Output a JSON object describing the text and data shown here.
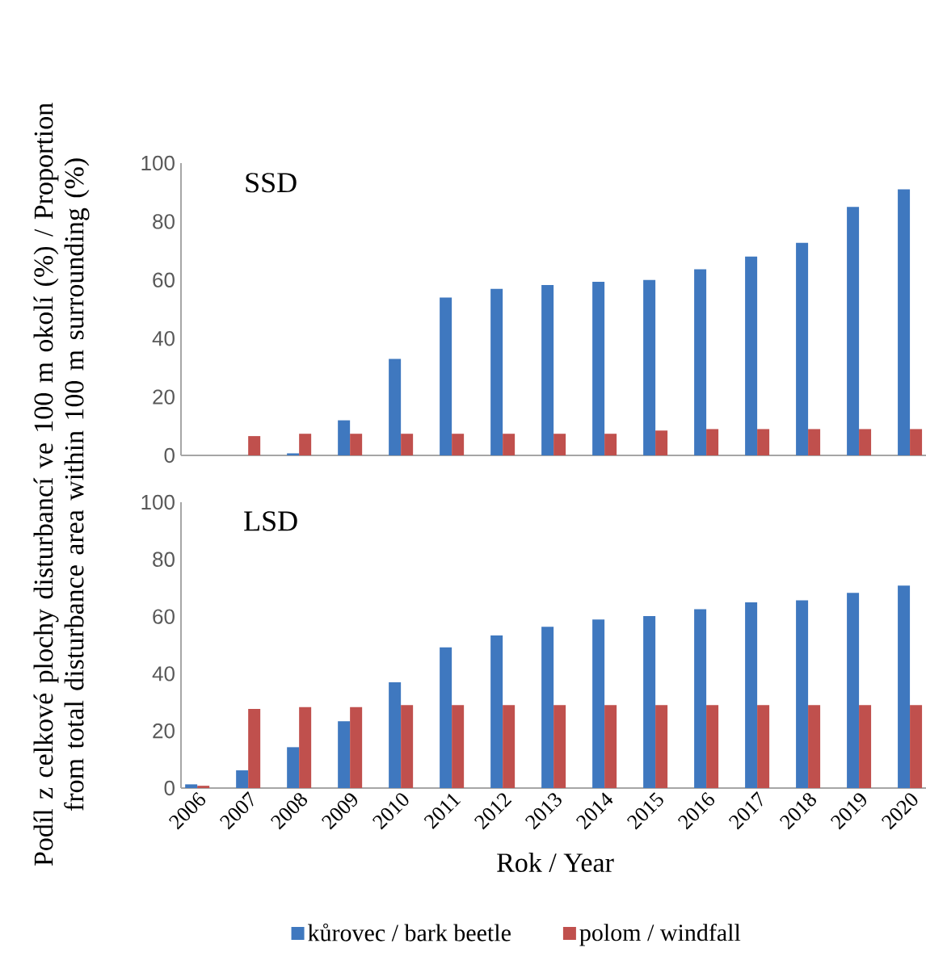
{
  "chart_data": [
    {
      "type": "bar",
      "title": "SSD",
      "ylabel": "Podíl z celkové plochy disturbancí ve 100 m okolí (%) / Proportion from total disturbance area within 100 m surrounding (%)",
      "categories": [
        "2006",
        "2007",
        "2008",
        "2009",
        "2010",
        "2011",
        "2012",
        "2013",
        "2014",
        "2015",
        "2016",
        "2017",
        "2018",
        "2019",
        "2020"
      ],
      "ylim": [
        0,
        100
      ],
      "yticks": [
        0,
        20,
        40,
        60,
        80,
        100
      ],
      "tick_labels": "y",
      "legend": false,
      "series": [
        {
          "color": "#3f78bf",
          "values": [
            0,
            0,
            0.7,
            12,
            33,
            54,
            57,
            58.3,
            59.4,
            60,
            63.7,
            68,
            72.7,
            85,
            91
          ]
        },
        {
          "color": "#c0504d",
          "values": [
            0,
            6.6,
            7.4,
            7.4,
            7.4,
            7.4,
            7.4,
            7.4,
            7.4,
            8.5,
            9,
            9,
            9,
            9,
            9
          ]
        }
      ]
    },
    {
      "type": "bar",
      "title": "LSD",
      "xlabel": "Rok / Year",
      "categories": [
        "2006",
        "2007",
        "2008",
        "2009",
        "2010",
        "2011",
        "2012",
        "2013",
        "2014",
        "2015",
        "2016",
        "2017",
        "2018",
        "2019",
        "2020"
      ],
      "ylim": [
        0,
        100
      ],
      "yticks": [
        0,
        20,
        40,
        60,
        80,
        100
      ],
      "legend": "bottom",
      "series": [
        {
          "name": "kůrovec / bark beetle",
          "color": "#3f78bf",
          "values": [
            1.3,
            6.2,
            14.3,
            23.4,
            37,
            49.2,
            53.4,
            56.4,
            59,
            60.2,
            62.6,
            65,
            65.7,
            68.3,
            70.8
          ]
        },
        {
          "name": "polom / windfall",
          "color": "#c0504d",
          "values": [
            0.8,
            27.7,
            28.3,
            28.3,
            29,
            29,
            29,
            29,
            29,
            29,
            29,
            29,
            29,
            29,
            29
          ]
        }
      ]
    }
  ]
}
